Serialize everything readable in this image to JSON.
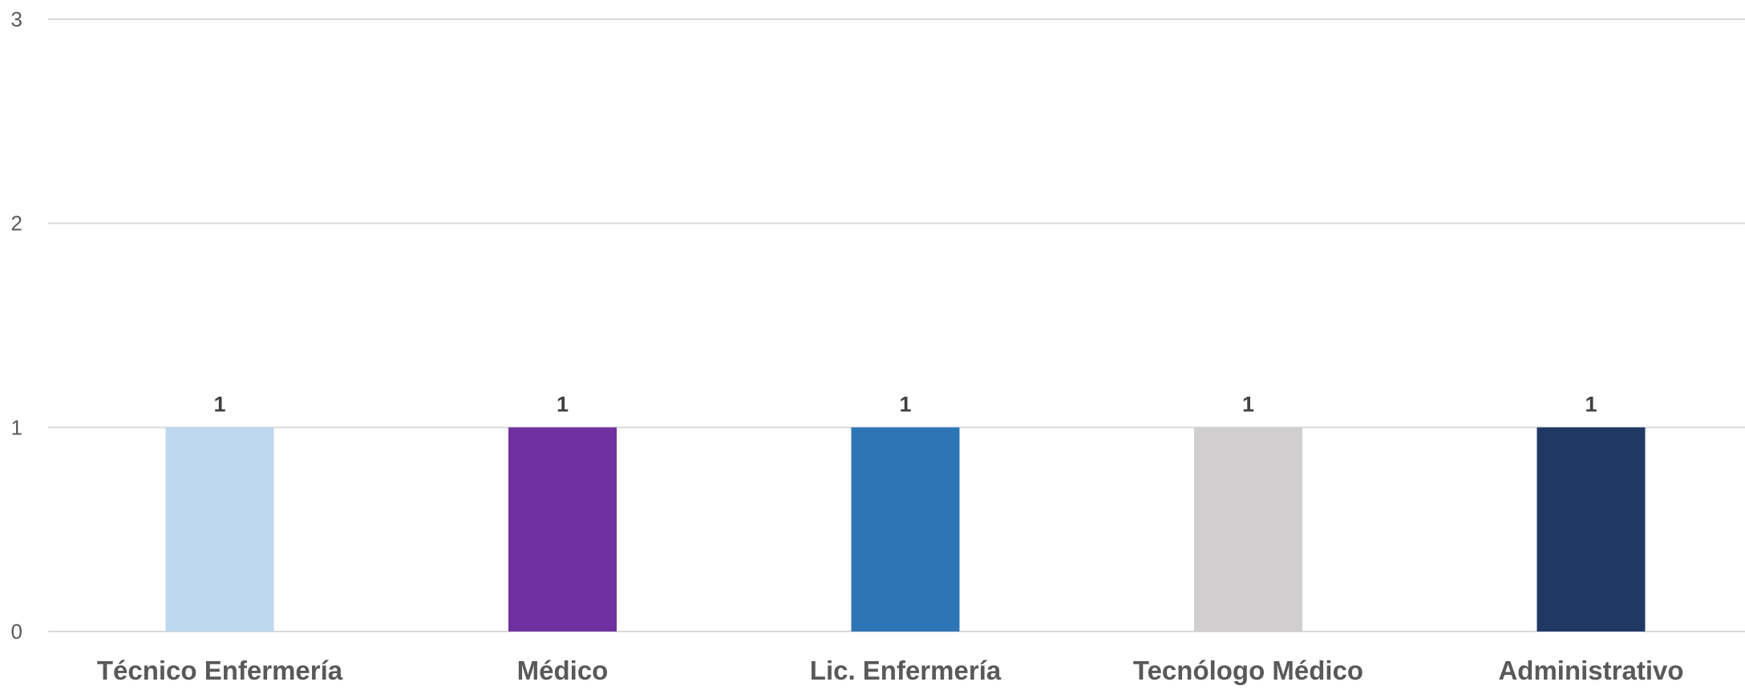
{
  "chart_data": {
    "type": "bar",
    "title": "",
    "xlabel": "",
    "ylabel": "",
    "categories": [
      "Técnico Enfermería",
      "Médico",
      "Lic. Enfermería",
      "Tecnólogo Médico",
      "Administrativo"
    ],
    "values": [
      1,
      1,
      1,
      1,
      1
    ],
    "bar_colors": [
      "#BDD7EE",
      "#7030A0",
      "#2E75B6",
      "#D0CECE",
      "#203864"
    ],
    "ylim": [
      0,
      3
    ],
    "yticks": [
      "0",
      "1",
      "2",
      "3"
    ],
    "data_labels": [
      "1",
      "1",
      "1",
      "1",
      "1"
    ],
    "grid": true,
    "legend": "none"
  }
}
